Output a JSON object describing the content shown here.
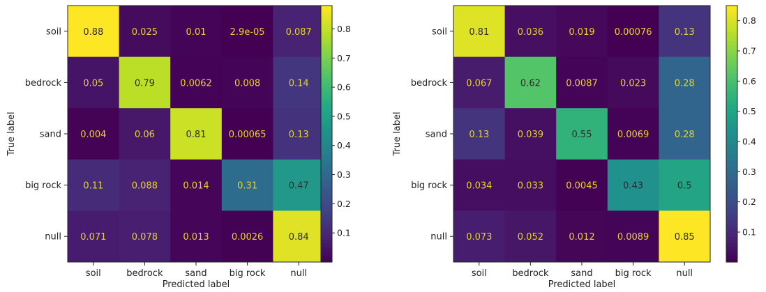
{
  "chart_data": [
    {
      "type": "heatmap",
      "title": "",
      "xlabel": "Predicted label",
      "ylabel": "True label",
      "x_categories": [
        "soil",
        "bedrock",
        "sand",
        "big rock",
        "null"
      ],
      "y_categories": [
        "soil",
        "bedrock",
        "sand",
        "big rock",
        "null"
      ],
      "values": [
        [
          0.88,
          0.025,
          0.01,
          2.9e-05,
          0.087
        ],
        [
          0.05,
          0.79,
          0.0062,
          0.008,
          0.14
        ],
        [
          0.004,
          0.06,
          0.81,
          0.00065,
          0.13
        ],
        [
          0.11,
          0.088,
          0.014,
          0.31,
          0.47
        ],
        [
          0.071,
          0.078,
          0.013,
          0.0026,
          0.84
        ]
      ],
      "labels": [
        [
          "0.88",
          "0.025",
          "0.01",
          "2.9e-05",
          "0.087"
        ],
        [
          "0.05",
          "0.79",
          "0.0062",
          "0.008",
          "0.14"
        ],
        [
          "0.004",
          "0.06",
          "0.81",
          "0.00065",
          "0.13"
        ],
        [
          "0.11",
          "0.088",
          "0.014",
          "0.31",
          "0.47"
        ],
        [
          "0.071",
          "0.078",
          "0.013",
          "0.0026",
          "0.84"
        ]
      ],
      "colorbar": {
        "range": [
          2.9e-05,
          0.88
        ],
        "ticks": [
          0.1,
          0.2,
          0.3,
          0.4,
          0.5,
          0.6,
          0.7,
          0.8
        ],
        "tick_labels": [
          "0.1",
          "0.2",
          "0.3",
          "0.4",
          "0.5",
          "0.6",
          "0.7",
          "0.8"
        ]
      },
      "colormap": "viridis"
    },
    {
      "type": "heatmap",
      "title": "",
      "xlabel": "Predicted label",
      "ylabel": "True label",
      "x_categories": [
        "soil",
        "bedrock",
        "sand",
        "big rock",
        "null"
      ],
      "y_categories": [
        "soil",
        "bedrock",
        "sand",
        "big rock",
        "null"
      ],
      "values": [
        [
          0.81,
          0.036,
          0.019,
          0.00076,
          0.13
        ],
        [
          0.067,
          0.62,
          0.0087,
          0.023,
          0.28
        ],
        [
          0.13,
          0.039,
          0.55,
          0.0069,
          0.28
        ],
        [
          0.034,
          0.033,
          0.0045,
          0.43,
          0.5
        ],
        [
          0.073,
          0.052,
          0.012,
          0.0089,
          0.85
        ]
      ],
      "labels": [
        [
          "0.81",
          "0.036",
          "0.019",
          "0.00076",
          "0.13"
        ],
        [
          "0.067",
          "0.62",
          "0.0087",
          "0.023",
          "0.28"
        ],
        [
          "0.13",
          "0.039",
          "0.55",
          "0.0069",
          "0.28"
        ],
        [
          "0.034",
          "0.033",
          "0.0045",
          "0.43",
          "0.5"
        ],
        [
          "0.073",
          "0.052",
          "0.012",
          "0.0089",
          "0.85"
        ]
      ],
      "colorbar": {
        "range": [
          0.00076,
          0.85
        ],
        "ticks": [
          0.1,
          0.2,
          0.3,
          0.4,
          0.5,
          0.6,
          0.7,
          0.8
        ],
        "tick_labels": [
          "0.1",
          "0.2",
          "0.3",
          "0.4",
          "0.5",
          "0.6",
          "0.7",
          "0.8"
        ]
      },
      "colormap": "viridis"
    }
  ]
}
